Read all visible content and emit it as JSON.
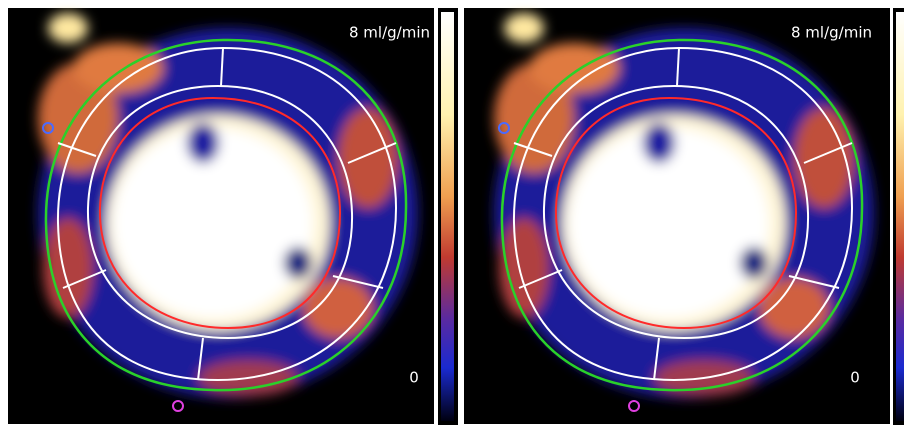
{
  "panels": [
    {
      "max_label": "8 ml/g/min",
      "min_label": "0"
    },
    {
      "max_label": "8 ml/g/min",
      "min_label": "0"
    }
  ]
}
